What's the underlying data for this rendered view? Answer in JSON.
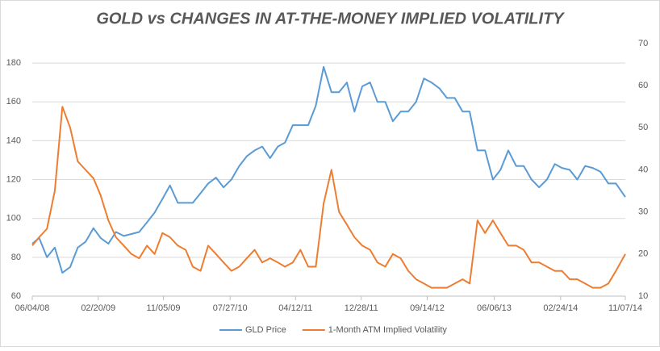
{
  "chart_data": {
    "type": "line",
    "title": "GOLD vs CHANGES IN AT-THE-MONEY IMPLIED VOLATILITY",
    "x": [
      "06/04/08",
      "07/01/08",
      "08/01/08",
      "09/01/08",
      "10/01/08",
      "11/01/08",
      "12/01/08",
      "01/01/09",
      "02/01/09",
      "03/01/09",
      "04/01/09",
      "05/01/09",
      "06/01/09",
      "07/01/09",
      "08/01/09",
      "09/01/09",
      "10/01/09",
      "11/01/09",
      "12/01/09",
      "01/01/10",
      "02/01/10",
      "03/01/10",
      "04/01/10",
      "05/01/10",
      "06/01/10",
      "07/01/10",
      "08/01/10",
      "09/01/10",
      "10/01/10",
      "11/01/10",
      "12/01/10",
      "01/01/11",
      "02/01/11",
      "03/01/11",
      "04/01/11",
      "05/01/11",
      "06/01/11",
      "07/01/11",
      "08/01/11",
      "09/01/11",
      "10/01/11",
      "11/01/11",
      "12/01/11",
      "01/01/12",
      "02/01/12",
      "03/01/12",
      "04/01/12",
      "05/01/12",
      "06/01/12",
      "07/01/12",
      "08/01/12",
      "09/01/12",
      "10/01/12",
      "11/01/12",
      "12/01/12",
      "01/01/13",
      "02/01/13",
      "03/01/13",
      "04/01/13",
      "05/01/13",
      "06/01/13",
      "07/01/13",
      "08/01/13",
      "09/01/13",
      "10/01/13",
      "11/01/13",
      "12/01/13",
      "01/01/14",
      "02/01/14",
      "03/01/14",
      "04/01/14",
      "05/01/14",
      "06/01/14",
      "07/01/14",
      "08/01/14",
      "09/01/14",
      "10/01/14",
      "11/07/14"
    ],
    "series": [
      {
        "name": "GLD Price",
        "color": "#5b9bd5",
        "axis": "y",
        "values": [
          87,
          90,
          80,
          85,
          72,
          75,
          85,
          88,
          95,
          90,
          87,
          93,
          91,
          92,
          93,
          98,
          103,
          110,
          117,
          108,
          108,
          108,
          113,
          118,
          121,
          116,
          120,
          127,
          132,
          135,
          137,
          131,
          137,
          139,
          148,
          148,
          148,
          158,
          178,
          165,
          165,
          170,
          155,
          168,
          170,
          160,
          160,
          150,
          155,
          155,
          160,
          172,
          170,
          167,
          162,
          162,
          155,
          155,
          135,
          135,
          120,
          125,
          135,
          127,
          127,
          120,
          116,
          120,
          128,
          126,
          125,
          120,
          127,
          126,
          124,
          118,
          118,
          111
        ]
      },
      {
        "name": "1-Month ATM Implied Volatility",
        "color": "#ed7d31",
        "axis": "y2",
        "values": [
          22,
          24,
          26,
          35,
          55,
          50,
          42,
          40,
          38,
          34,
          28,
          24,
          22,
          20,
          19,
          22,
          20,
          25,
          24,
          22,
          21,
          17,
          16,
          22,
          20,
          18,
          16,
          17,
          19,
          21,
          18,
          19,
          18,
          17,
          18,
          21,
          17,
          17,
          32,
          40,
          30,
          27,
          24,
          22,
          21,
          18,
          17,
          20,
          19,
          16,
          14,
          13,
          12,
          12,
          12,
          13,
          14,
          13,
          28,
          25,
          28,
          25,
          22,
          22,
          21,
          18,
          18,
          17,
          16,
          16,
          14,
          14,
          13,
          12,
          12,
          13,
          16,
          20
        ]
      }
    ],
    "xticks": [
      "06/04/08",
      "02/20/09",
      "11/05/09",
      "07/27/10",
      "04/12/11",
      "12/28/11",
      "09/14/12",
      "06/06/13",
      "02/24/14",
      "11/07/14"
    ],
    "ylim": [
      60,
      190
    ],
    "yticks": [
      60,
      80,
      100,
      120,
      140,
      160,
      180
    ],
    "y2lim": [
      10,
      70
    ],
    "y2ticks": [
      10,
      20,
      30,
      40,
      50,
      60,
      70
    ],
    "grid": true,
    "legend": "bottom"
  }
}
